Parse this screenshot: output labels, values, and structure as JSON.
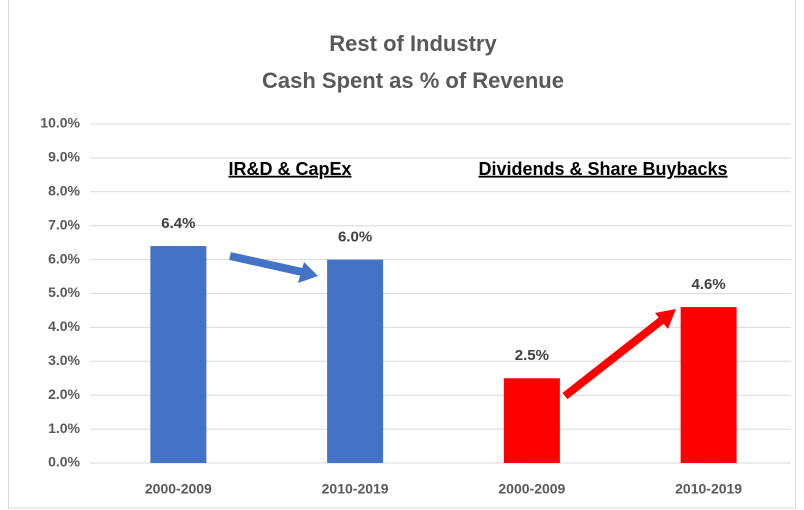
{
  "chart_data": {
    "type": "bar",
    "title": [
      "Rest of Industry",
      "Cash Spent as % of Revenue"
    ],
    "annotations": [
      "IR&D & CapEx",
      "Dividends & Share Buybacks"
    ],
    "categories": [
      "2000-2009",
      "2010-2019",
      "2000-2009",
      "2010-2019"
    ],
    "values": [
      6.4,
      6,
      2.5,
      4.6
    ],
    "value_labels": [
      "6.4%",
      "6.0%",
      "2.5%",
      "4.6%"
    ],
    "colors": [
      "#4472c4",
      "#4472c4",
      "#ff0000",
      "#ff0000"
    ],
    "ylim": [
      0,
      10
    ],
    "yticks": [
      {
        "value": 0,
        "label": "0.0%"
      },
      {
        "value": 1,
        "label": "1.0%"
      },
      {
        "value": 2,
        "label": "2.0%"
      },
      {
        "value": 3,
        "label": "3.0%"
      },
      {
        "value": 4,
        "label": "4.0%"
      },
      {
        "value": 5,
        "label": "5.0%"
      },
      {
        "value": 6,
        "label": "6.0%"
      },
      {
        "value": 7,
        "label": "7.0%"
      },
      {
        "value": 8,
        "label": "8.0%"
      },
      {
        "value": 9,
        "label": "9.0%"
      },
      {
        "value": 10,
        "label": "10.0%"
      }
    ],
    "grid": true
  }
}
